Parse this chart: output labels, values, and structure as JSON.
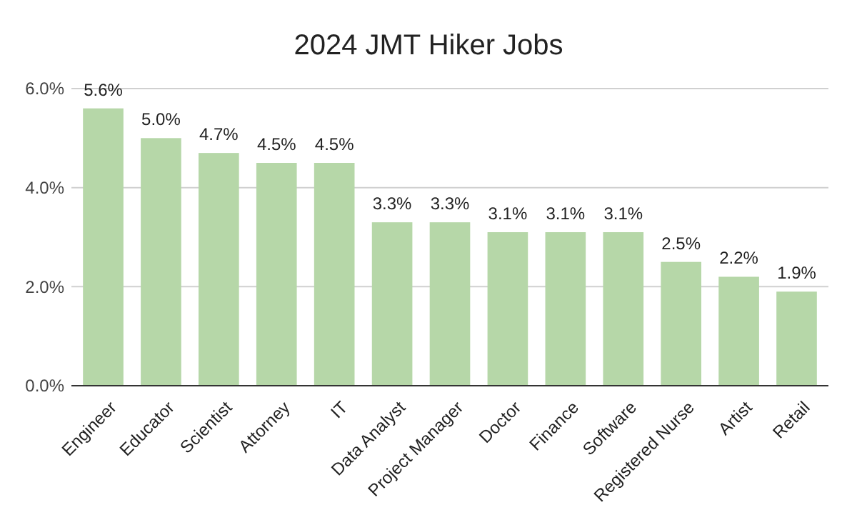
{
  "chart_data": {
    "type": "bar",
    "title": "2024 JMT Hiker Jobs",
    "categories": [
      "Engineer",
      "Educator",
      "Scientist",
      "Attorney",
      "IT",
      "Data Analyst",
      "Project Manager",
      "Doctor",
      "Finance",
      "Software",
      "Registered Nurse",
      "Artist",
      "Retail"
    ],
    "values": [
      5.6,
      5.0,
      4.7,
      4.5,
      4.5,
      3.3,
      3.3,
      3.1,
      3.1,
      3.1,
      2.5,
      2.2,
      1.9
    ],
    "value_labels": [
      "5.6%",
      "5.0%",
      "4.7%",
      "4.5%",
      "4.5%",
      "3.3%",
      "3.3%",
      "3.1%",
      "3.1%",
      "3.1%",
      "2.5%",
      "2.2%",
      "1.9%"
    ],
    "color": "#b6d7a8",
    "ylim": [
      0,
      6
    ],
    "yticks": [
      {
        "value": 0,
        "label": "0.0%"
      },
      {
        "value": 2,
        "label": "2.0%"
      },
      {
        "value": 4,
        "label": "4.0%"
      },
      {
        "value": 6,
        "label": "6.0%"
      }
    ],
    "grid": "y"
  }
}
